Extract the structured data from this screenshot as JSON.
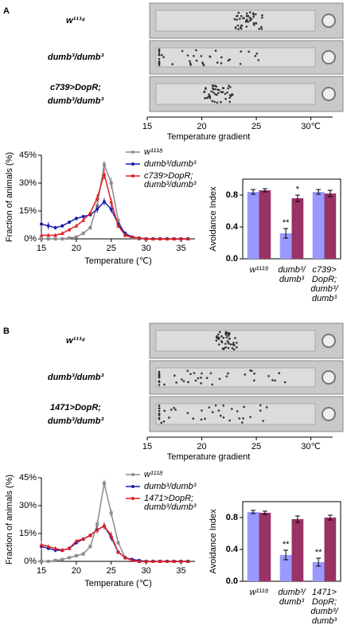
{
  "panels": [
    {
      "label": "A",
      "genotypes": [
        "w¹¹¹⁸",
        "dumb³/dumb³",
        "c739>DopR;\ndumb³/dumb³"
      ],
      "gradient": {
        "title": "Temperature gradient",
        "xlim": [
          15,
          32
        ],
        "xticks": [
          15,
          20,
          25,
          {
            "value": 30,
            "label": "30℃"
          }
        ]
      }
    },
    {
      "label": "B",
      "genotypes": [
        "w¹¹¹⁸",
        "dumb³/dumb³",
        "1471>DopR;\ndumb³/dumb³"
      ],
      "gradient": {
        "title": "Temperature gradient",
        "xlim": [
          15,
          32
        ],
        "xticks": [
          15,
          20,
          25,
          {
            "value": 30,
            "label": "30℃"
          }
        ]
      }
    }
  ],
  "chart_data": [
    {
      "type": "line",
      "x_label": "Temperature (℃)",
      "y_label": "Fraction of animals (%)",
      "x": [
        15,
        16,
        17,
        18,
        19,
        20,
        21,
        22,
        23,
        24,
        25,
        26,
        27,
        28,
        29,
        30,
        31,
        32,
        33,
        34,
        35,
        36
      ],
      "xlim": [
        15,
        37
      ],
      "xticks": [
        15,
        20,
        25,
        30,
        35
      ],
      "ylim": [
        0,
        45
      ],
      "yticks": [
        {
          "value": 0,
          "label": "0%"
        },
        {
          "value": 15,
          "label": "15%"
        },
        {
          "value": 30,
          "label": "30%"
        },
        {
          "value": 45,
          "label": "45%"
        }
      ],
      "series": [
        {
          "name": "w¹¹¹⁸",
          "color": "#8c8c8c",
          "values": [
            0,
            0,
            0,
            0,
            0.5,
            1,
            3,
            6,
            18,
            40,
            30,
            10,
            2,
            0.5,
            0,
            0,
            0,
            0,
            0,
            0,
            0,
            0
          ],
          "errors": [
            0,
            0,
            0,
            0,
            0.5,
            0.5,
            1,
            1,
            2,
            2,
            3,
            1,
            1,
            0.5,
            0,
            0,
            0,
            0,
            0,
            0,
            0,
            0
          ]
        },
        {
          "name": "dumb³/dumb³",
          "color": "#1c1ca8",
          "values": [
            8,
            7,
            6,
            7,
            9,
            11,
            12,
            13,
            16,
            20,
            16,
            8,
            3,
            1,
            0.5,
            0,
            0,
            0,
            0,
            0,
            0,
            0
          ],
          "errors": [
            2,
            2,
            1,
            1,
            1,
            1,
            1,
            1,
            2,
            2,
            2,
            1,
            1,
            0.5,
            0.5,
            0,
            0,
            0,
            0,
            0,
            0,
            0
          ]
        },
        {
          "name": "c739>DopR;\ndumb³/dumb³",
          "color": "#e02020",
          "values": [
            2,
            2,
            2,
            3,
            5,
            7,
            10,
            14,
            22,
            35,
            20,
            7,
            2,
            1,
            0.5,
            0,
            0,
            0,
            0,
            0,
            0,
            0
          ],
          "errors": [
            1,
            1,
            1,
            1,
            1,
            1,
            1,
            1,
            2,
            3,
            2,
            1,
            1,
            0.5,
            0.5,
            0,
            0,
            0,
            0,
            0,
            0,
            0
          ]
        }
      ]
    },
    {
      "type": "bar",
      "y_label": "Avoidance Index",
      "categories": [
        "w¹¹¹⁸",
        "dumb³/\ndumb³",
        "c739>\nDopR;\ndumb³/\ndumb³"
      ],
      "ylim": [
        0,
        1
      ],
      "yticks": [
        {
          "value": 0,
          "label": "0.0"
        },
        0.4,
        0.8
      ],
      "series": [
        {
          "color": "#9999ff",
          "values": [
            0.84,
            0.32,
            0.84
          ],
          "errors": [
            0.03,
            0.06,
            0.03
          ]
        },
        {
          "color": "#993366",
          "values": [
            0.86,
            0.76,
            0.82
          ],
          "errors": [
            0.02,
            0.04,
            0.04
          ]
        }
      ],
      "annotations": [
        {
          "text": "**",
          "series": 0,
          "index": 1
        },
        {
          "text": "*",
          "series": 1,
          "index": 1
        }
      ]
    },
    {
      "type": "line",
      "x_label": "Temperature (℃)",
      "y_label": "Fraction of animals (%)",
      "x": [
        15,
        16,
        17,
        18,
        19,
        20,
        21,
        22,
        23,
        24,
        25,
        26,
        27,
        28,
        29,
        30,
        31,
        32,
        33,
        34,
        35,
        36
      ],
      "xlim": [
        15,
        37
      ],
      "xticks": [
        15,
        20,
        25,
        30,
        35
      ],
      "ylim": [
        0,
        45
      ],
      "yticks": [
        {
          "value": 0,
          "label": "0%"
        },
        {
          "value": 15,
          "label": "15%"
        },
        {
          "value": 30,
          "label": "30%"
        },
        {
          "value": 45,
          "label": "45%"
        }
      ],
      "series": [
        {
          "name": "w¹¹¹⁸",
          "color": "#8c8c8c",
          "values": [
            0,
            0,
            0.5,
            1,
            2,
            3,
            4,
            8,
            20,
            42,
            26,
            10,
            2,
            1,
            0,
            0,
            0,
            0,
            0,
            0,
            0,
            0
          ],
          "errors": [
            0,
            0,
            0.5,
            0.5,
            0.5,
            1,
            1,
            1,
            2,
            2,
            2,
            1,
            1,
            0.5,
            0,
            0,
            0,
            0,
            0,
            0,
            0,
            0
          ]
        },
        {
          "name": "dumb³/dumb³",
          "color": "#1c1ca8",
          "values": [
            8,
            7,
            6,
            6,
            7,
            10,
            12,
            14,
            17,
            19,
            13,
            5,
            2,
            1,
            0.5,
            0,
            0,
            0,
            0,
            0,
            0,
            0
          ],
          "errors": [
            2,
            1,
            1,
            1,
            1,
            1,
            1,
            1,
            2,
            2,
            2,
            1,
            1,
            0.5,
            0.5,
            0,
            0,
            0,
            0,
            0,
            0,
            0
          ]
        },
        {
          "name": "1471>DopR;\ndumb³/dumb³",
          "color": "#e02020",
          "values": [
            9,
            8,
            7,
            6,
            7,
            11,
            12,
            14,
            17,
            19,
            14,
            5,
            2,
            0.5,
            0,
            0,
            0,
            0,
            0,
            0,
            0,
            0
          ],
          "errors": [
            2,
            1,
            1,
            1,
            1,
            1,
            1,
            1,
            2,
            2,
            2,
            1,
            1,
            0.5,
            0,
            0,
            0,
            0,
            0,
            0,
            0,
            0
          ]
        }
      ]
    },
    {
      "type": "bar",
      "y_label": "Avoidance Index",
      "categories": [
        "w¹¹¹⁸",
        "dumb³/\ndumb³",
        "1471>\nDopR;\ndumb³/\ndumb³"
      ],
      "ylim": [
        0,
        1
      ],
      "yticks": [
        {
          "value": 0,
          "label": "0.0"
        },
        0.4,
        0.8
      ],
      "series": [
        {
          "color": "#9999ff",
          "values": [
            0.87,
            0.33,
            0.24
          ],
          "errors": [
            0.02,
            0.06,
            0.05
          ]
        },
        {
          "color": "#993366",
          "values": [
            0.86,
            0.78,
            0.8
          ],
          "errors": [
            0.02,
            0.04,
            0.03
          ]
        }
      ],
      "annotations": [
        {
          "text": "**",
          "series": 0,
          "index": 1
        },
        {
          "text": "**",
          "series": 0,
          "index": 2
        }
      ]
    }
  ]
}
